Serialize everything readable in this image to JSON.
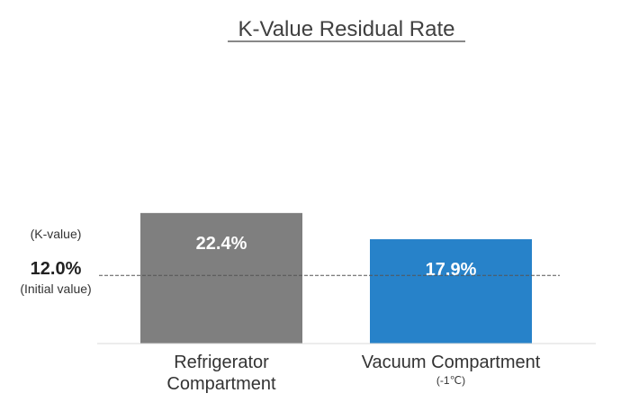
{
  "chart_data": {
    "type": "bar",
    "title": "K-Value Residual Rate",
    "ylabel": "(K-value)",
    "categories": [
      "Refrigerator Compartment",
      "Vacuum Compartment"
    ],
    "category_lines": [
      [
        "Refrigerator",
        "Compartment"
      ],
      [
        "Vacuum Compartment",
        "(-1℃)"
      ]
    ],
    "values": [
      22.4,
      17.9
    ],
    "value_labels": [
      "22.4%",
      "17.9%"
    ],
    "bar_colors": [
      "#7f7f7f",
      "#2782c9"
    ],
    "reference_line": {
      "value": 12.0,
      "label": "12.0%",
      "sublabel": "(Initial value)",
      "style": "dashed"
    },
    "ylim": [
      0,
      25
    ]
  }
}
